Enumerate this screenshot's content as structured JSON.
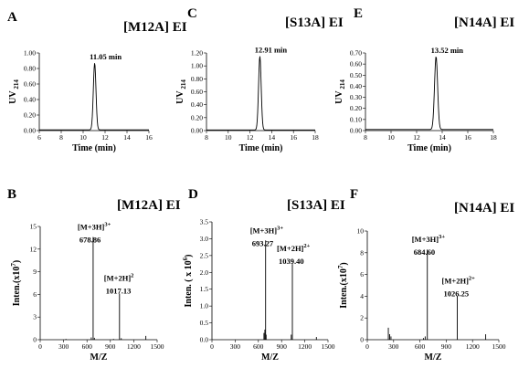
{
  "chart_data": [
    {
      "panel": "A",
      "type": "line",
      "title": "[M12A] EI",
      "xlabel": "Time (min)",
      "ylabel": "UV",
      "ylabel_sub": "214",
      "xlim": [
        6,
        16
      ],
      "ylim": [
        0,
        1.0
      ],
      "xticks": [
        "6",
        "8",
        "10",
        "12",
        "14",
        "16"
      ],
      "yticks": [
        "0.00",
        "0.20",
        "0.40",
        "0.60",
        "0.80",
        "1.00"
      ],
      "peaks": [
        {
          "x": 11.05,
          "y": 0.86,
          "width": 0.12
        }
      ],
      "baseline": 0.01,
      "annotations": [
        {
          "label": "11.05 min",
          "x": 11.05
        }
      ]
    },
    {
      "panel": "C",
      "type": "line",
      "title": "[S13A] EI",
      "xlabel": "Time (min)",
      "ylabel": "UV",
      "ylabel_sub": "214",
      "xlim": [
        8,
        18
      ],
      "ylim": [
        0,
        1.2
      ],
      "xticks": [
        "8",
        "10",
        "12",
        "14",
        "16",
        "18"
      ],
      "yticks": [
        "0.00",
        "0.20",
        "0.40",
        "0.60",
        "0.80",
        "1.00",
        "1.20"
      ],
      "peaks": [
        {
          "x": 12.91,
          "y": 1.14,
          "width": 0.12
        }
      ],
      "baseline": 0.01,
      "annotations": [
        {
          "label": "12.91 min",
          "x": 12.91
        }
      ]
    },
    {
      "panel": "E",
      "type": "line",
      "title": "[N14A] EI",
      "xlabel": "Time (min)",
      "ylabel": "UV",
      "ylabel_sub": "214",
      "xlim": [
        8,
        18
      ],
      "ylim": [
        0,
        0.7
      ],
      "xticks": [
        "8",
        "10",
        "12",
        "14",
        "16",
        "18"
      ],
      "yticks": [
        "0.00",
        "0.10",
        "0.20",
        "0.30",
        "0.40",
        "0.50",
        "0.60",
        "0.70"
      ],
      "peaks": [
        {
          "x": 13.52,
          "y": 0.66,
          "width": 0.12
        }
      ],
      "baseline": 0.01,
      "annotations": [
        {
          "label": "13.52 min",
          "x": 13.52
        }
      ]
    },
    {
      "panel": "B",
      "type": "bar",
      "title": "[M12A] EI",
      "xlabel": "M/Z",
      "ylabel": "Inten.(x10",
      "ylabel_sup": "7",
      "ylabel_end": ")",
      "xlim": [
        0,
        1500
      ],
      "ylim": [
        0,
        15
      ],
      "xticks": [
        "0",
        "300",
        "600",
        "900",
        "1200",
        "1500"
      ],
      "yticks": [
        "0",
        "3",
        "6",
        "9",
        "12",
        "15"
      ],
      "peaks": [
        {
          "x": 678.86,
          "y": 13.6
        },
        {
          "x": 1017.13,
          "y": 6.1
        },
        {
          "x": 655,
          "y": 0.3
        },
        {
          "x": 695,
          "y": 0.25
        },
        {
          "x": 1040,
          "y": 0.2
        },
        {
          "x": 1355,
          "y": 0.5
        },
        {
          "x": 330,
          "y": 0.1
        },
        {
          "x": 940,
          "y": 0.1
        }
      ],
      "annotations": [
        {
          "ion": "[M+3H]",
          "charge": "3+",
          "value": "678.86"
        },
        {
          "ion": "[M+2H]",
          "charge": "2",
          "value": "1017.13"
        }
      ]
    },
    {
      "panel": "D",
      "type": "bar",
      "title": "[S13A] EI",
      "xlabel": "M/Z",
      "ylabel": "Inten. ( x 10",
      "ylabel_sup": "6",
      "ylabel_end": ")",
      "xlim": [
        0,
        1500
      ],
      "ylim": [
        0,
        3.5
      ],
      "xticks": [
        "0",
        "300",
        "600",
        "900",
        "1200",
        "1500"
      ],
      "yticks": [
        "0.0",
        "0.5",
        "1.0",
        "1.5",
        "2.0",
        "2.5",
        "3.0",
        "3.5"
      ],
      "peaks": [
        {
          "x": 693.27,
          "y": 2.95
        },
        {
          "x": 1039.4,
          "y": 2.25
        },
        {
          "x": 672,
          "y": 0.2
        },
        {
          "x": 684,
          "y": 0.3
        },
        {
          "x": 700,
          "y": 0.15
        },
        {
          "x": 1025,
          "y": 0.15
        },
        {
          "x": 1350,
          "y": 0.08
        }
      ],
      "annotations": [
        {
          "ion": "[M+3H]",
          "charge": "3+",
          "value": "693.27"
        },
        {
          "ion": "[M+2H]",
          "charge": "2+",
          "value": "1039.40"
        }
      ]
    },
    {
      "panel": "F",
      "type": "bar",
      "title": "[N14A] EI",
      "xlabel": "M/Z",
      "ylabel": "Inten.(x10",
      "ylabel_sup": "7",
      "ylabel_end": ")",
      "xlim": [
        0,
        1500
      ],
      "ylim": [
        0,
        10
      ],
      "xticks": [
        "0",
        "300",
        "600",
        "900",
        "1200",
        "1500"
      ],
      "yticks": [
        "0",
        "2",
        "4",
        "6",
        "8",
        "10"
      ],
      "peaks": [
        {
          "x": 684.6,
          "y": 8.3
        },
        {
          "x": 1026.25,
          "y": 4.0
        },
        {
          "x": 240,
          "y": 1.1
        },
        {
          "x": 255,
          "y": 0.5
        },
        {
          "x": 270,
          "y": 0.3
        },
        {
          "x": 660,
          "y": 0.3
        },
        {
          "x": 1350,
          "y": 0.5
        },
        {
          "x": 640,
          "y": 0.15
        }
      ],
      "annotations": [
        {
          "ion": "[M+3H]",
          "charge": "3+",
          "value": "684.60"
        },
        {
          "ion": "[M+2H]",
          "charge": "2+",
          "value": "1026.25"
        }
      ]
    }
  ]
}
